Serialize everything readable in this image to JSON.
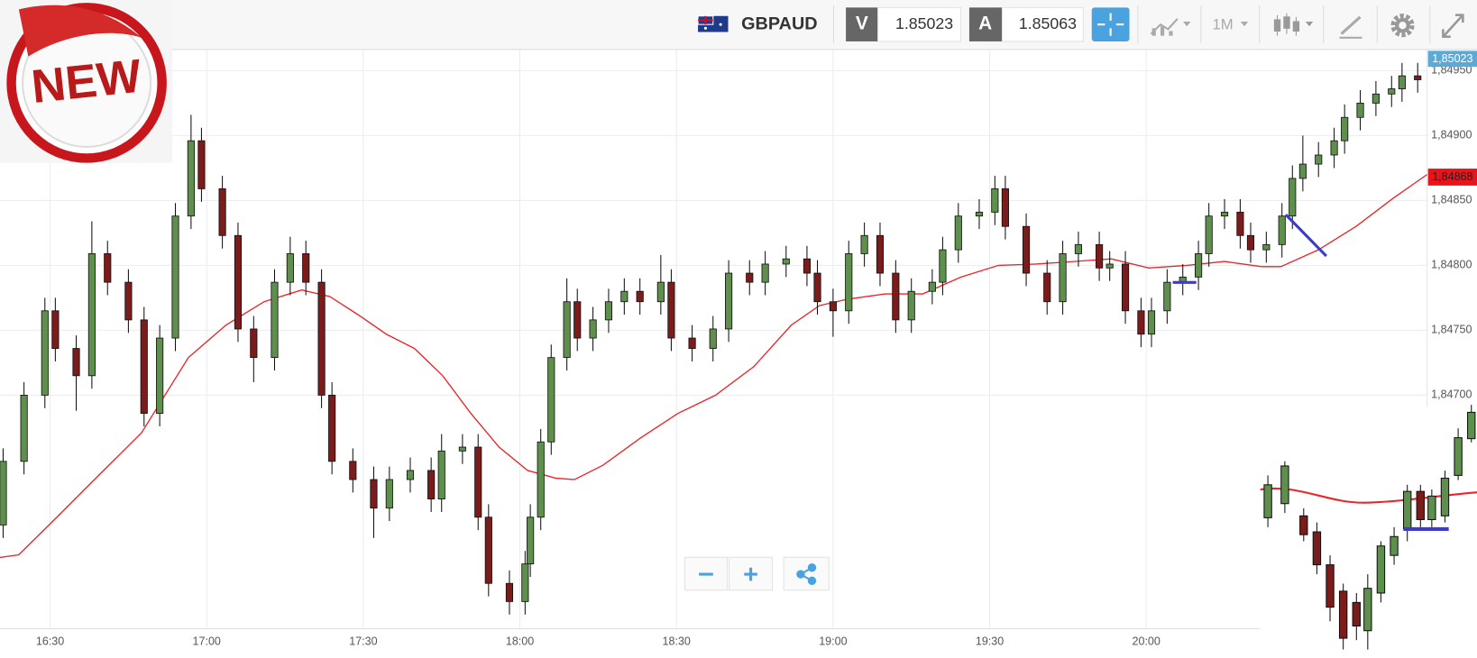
{
  "badge": "NEW",
  "toolbar": {
    "symbol": "GBPAUD",
    "bid_label": "V",
    "bid": 1.85023,
    "ask_label": "A",
    "ask": 1.85063,
    "timeframe": "1M"
  },
  "chart_data": {
    "type": "candlestick",
    "x": [
      981,
      985,
      989,
      991,
      995,
      998,
      1001,
      1005,
      1008,
      1011,
      1014,
      1017,
      1019,
      1023,
      1026,
      1029,
      1033,
      1036,
      1039,
      1042,
      1044,
      1048,
      1052,
      1055,
      1059,
      1063,
      1065,
      1069,
      1072,
      1074,
      1078,
      1081,
      1082,
      1084,
      1086,
      1089,
      1091,
      1094,
      1097,
      1100,
      1103,
      1107,
      1109,
      1113,
      1117,
      1120,
      1124,
      1127,
      1131,
      1135,
      1137,
      1140,
      1143,
      1146,
      1149,
      1152,
      1155,
      1159,
      1161,
      1164,
      1168,
      1171,
      1173,
      1177,
      1181,
      1184,
      1187,
      1191,
      1193,
      1196,
      1199,
      1201,
      1204,
      1207,
      1210,
      1212,
      1215,
      1218,
      1220,
      1223,
      1226,
      1228,
      1230,
      1233,
      1236,
      1238,
      1241,
      1244,
      1247,
      1249,
      1252
    ],
    "open": [
      1.846,
      1.84649,
      1.847,
      1.84765,
      1.84736,
      1.84715,
      1.84809,
      1.84787,
      1.84758,
      1.84686,
      1.84744,
      1.84838,
      1.84896,
      1.84859,
      1.84823,
      1.84751,
      1.84729,
      1.84787,
      1.84809,
      1.84787,
      1.847,
      1.84649,
      1.84635,
      1.84613,
      1.84635,
      1.84642,
      1.8462,
      1.84657,
      1.8466,
      1.84606,
      1.84555,
      1.84541,
      1.8457,
      1.84606,
      1.84664,
      1.84729,
      1.84772,
      1.84744,
      1.84758,
      1.84772,
      1.8478,
      1.84772,
      1.84787,
      1.84744,
      1.84736,
      1.84751,
      1.84794,
      1.84787,
      1.84801,
      1.84805,
      1.84794,
      1.84772,
      1.84765,
      1.84809,
      1.84823,
      1.84794,
      1.84758,
      1.8478,
      1.84787,
      1.84812,
      1.84838,
      1.84841,
      1.84859,
      1.8483,
      1.84794,
      1.84772,
      1.84809,
      1.84816,
      1.84798,
      1.84801,
      1.84765,
      1.84747,
      1.84765,
      1.84787,
      1.84791,
      1.84809,
      1.84838,
      1.84841,
      1.84823,
      1.84812,
      1.84816,
      1.84838,
      1.84867,
      1.84878,
      1.84885,
      1.84896,
      1.84914,
      1.84925,
      1.84932,
      1.84936,
      1.84946
    ],
    "high": [
      1.84659,
      1.8471,
      1.84775,
      1.84775,
      1.84746,
      1.84834,
      1.84819,
      1.84797,
      1.84768,
      1.84754,
      1.84848,
      1.84916,
      1.84906,
      1.84869,
      1.84833,
      1.84761,
      1.84797,
      1.84822,
      1.84819,
      1.84797,
      1.8471,
      1.84659,
      1.84645,
      1.84645,
      1.84652,
      1.84652,
      1.8467,
      1.8467,
      1.8467,
      1.84616,
      1.84565,
      1.8458,
      1.84616,
      1.84674,
      1.84739,
      1.8479,
      1.84782,
      1.84768,
      1.84782,
      1.8479,
      1.8479,
      1.84808,
      1.84797,
      1.84754,
      1.84761,
      1.84804,
      1.84804,
      1.84811,
      1.84815,
      1.84815,
      1.84804,
      1.84782,
      1.84819,
      1.84833,
      1.84833,
      1.84804,
      1.8479,
      1.84797,
      1.84822,
      1.84848,
      1.84851,
      1.84869,
      1.84869,
      1.8484,
      1.84804,
      1.84819,
      1.84826,
      1.84826,
      1.84811,
      1.84811,
      1.84775,
      1.84775,
      1.84797,
      1.84801,
      1.84819,
      1.84848,
      1.84851,
      1.84851,
      1.84833,
      1.84826,
      1.84848,
      1.84877,
      1.849,
      1.84895,
      1.84906,
      1.84924,
      1.84935,
      1.84942,
      1.84946,
      1.84956,
      1.84956
    ],
    "low": [
      1.8459,
      1.84639,
      1.8469,
      1.84726,
      1.84688,
      1.84705,
      1.84777,
      1.84748,
      1.84676,
      1.84676,
      1.84734,
      1.84828,
      1.84849,
      1.84813,
      1.84741,
      1.8471,
      1.84719,
      1.84777,
      1.84777,
      1.8469,
      1.84639,
      1.84625,
      1.8459,
      1.84603,
      1.84625,
      1.8461,
      1.8461,
      1.84647,
      1.84596,
      1.84545,
      1.84531,
      1.84531,
      1.8456,
      1.84596,
      1.84654,
      1.84719,
      1.84734,
      1.84734,
      1.84748,
      1.84762,
      1.84762,
      1.84762,
      1.84734,
      1.84726,
      1.84726,
      1.84741,
      1.84777,
      1.84777,
      1.84791,
      1.84784,
      1.84762,
      1.84745,
      1.84755,
      1.84799,
      1.84784,
      1.84748,
      1.84748,
      1.8477,
      1.84777,
      1.84802,
      1.84828,
      1.84831,
      1.8482,
      1.84784,
      1.84762,
      1.84762,
      1.84799,
      1.84788,
      1.84788,
      1.84755,
      1.84737,
      1.84737,
      1.84755,
      1.84777,
      1.84781,
      1.84799,
      1.84828,
      1.84813,
      1.84802,
      1.84802,
      1.84806,
      1.84828,
      1.84857,
      1.84868,
      1.84875,
      1.84886,
      1.84904,
      1.84915,
      1.84922,
      1.84926,
      1.84933
    ],
    "close": [
      1.84649,
      1.847,
      1.84765,
      1.84736,
      1.84715,
      1.84809,
      1.84787,
      1.84758,
      1.84686,
      1.84744,
      1.84838,
      1.84896,
      1.84859,
      1.84823,
      1.84751,
      1.84729,
      1.84787,
      1.84809,
      1.84787,
      1.847,
      1.84649,
      1.84635,
      1.84613,
      1.84635,
      1.84642,
      1.8462,
      1.84657,
      1.8466,
      1.84606,
      1.84555,
      1.84541,
      1.8457,
      1.84606,
      1.84664,
      1.84729,
      1.84772,
      1.84744,
      1.84758,
      1.84772,
      1.8478,
      1.84772,
      1.84787,
      1.84744,
      1.84736,
      1.84751,
      1.84794,
      1.84787,
      1.84801,
      1.84805,
      1.84794,
      1.84772,
      1.84765,
      1.84809,
      1.84823,
      1.84794,
      1.84758,
      1.8478,
      1.84787,
      1.84812,
      1.84838,
      1.84841,
      1.84859,
      1.8483,
      1.84794,
      1.84772,
      1.84809,
      1.84816,
      1.84798,
      1.84801,
      1.84765,
      1.84747,
      1.84765,
      1.84787,
      1.84791,
      1.84809,
      1.84838,
      1.84841,
      1.84823,
      1.84812,
      1.84816,
      1.84838,
      1.84867,
      1.84878,
      1.84885,
      1.84896,
      1.84914,
      1.84925,
      1.84932,
      1.84936,
      1.84946,
      1.84943
    ],
    "up_color": "#5e8f4c",
    "down_color": "#7a1c1c",
    "moving_average": {
      "color": "#e8262b",
      "x": [
        980.4,
        984,
        991.3,
        998.5,
        1007.5,
        1016.5,
        1023.7,
        1031,
        1038.2,
        1043.6,
        1049,
        1054.4,
        1059.8,
        1065.2,
        1070.6,
        1076,
        1081.5,
        1086.9,
        1090.5,
        1095.9,
        1103.1,
        1110.3,
        1117.5,
        1124.8,
        1132,
        1137.4,
        1142.8,
        1150,
        1157.2,
        1164.5,
        1171.7,
        1178.9,
        1186.1,
        1193.3,
        1200.5,
        1207.8,
        1215,
        1222.2,
        1225.8,
        1233,
        1240.2,
        1247.4,
        1253.8
      ],
      "values": [
        1.84575,
        1.84577,
        1.84606,
        1.84635,
        1.84671,
        1.84729,
        1.84754,
        1.84772,
        1.84781,
        1.84776,
        1.84762,
        1.84747,
        1.84736,
        1.84715,
        1.84686,
        1.8466,
        1.84642,
        1.84636,
        1.84635,
        1.84646,
        1.84667,
        1.84686,
        1.847,
        1.84722,
        1.84754,
        1.84769,
        1.84774,
        1.84778,
        1.84778,
        1.84791,
        1.848,
        1.84801,
        1.84803,
        1.84805,
        1.84798,
        1.848,
        1.84803,
        1.84799,
        1.84799,
        1.84812,
        1.8483,
        1.84852,
        1.8487
      ]
    },
    "last_price": {
      "value": 1.85023,
      "label": "1,85023"
    },
    "ma_price": {
      "value": 1.84868,
      "label": "1,84868"
    },
    "xlim": [
      980.4,
      1253.8
    ],
    "ylim": [
      1.8452,
      1.84966
    ],
    "xticks": [
      {
        "value": 990,
        "label": "16:30"
      },
      {
        "value": 1020,
        "label": "17:00"
      },
      {
        "value": 1050,
        "label": "17:30"
      },
      {
        "value": 1080,
        "label": "18:00"
      },
      {
        "value": 1110,
        "label": "18:30"
      },
      {
        "value": 1140,
        "label": "19:00"
      },
      {
        "value": 1170,
        "label": "19:30"
      },
      {
        "value": 1200,
        "label": "20:00"
      }
    ],
    "yticks": [
      {
        "value": 1.847,
        "label": "1,84700"
      },
      {
        "value": 1.8475,
        "label": "1,84750"
      },
      {
        "value": 1.848,
        "label": "1,84800"
      },
      {
        "value": 1.8485,
        "label": "1,84850"
      },
      {
        "value": 1.849,
        "label": "1,84900"
      },
      {
        "value": 1.8495,
        "label": "1,84950"
      }
    ],
    "grid": true
  }
}
